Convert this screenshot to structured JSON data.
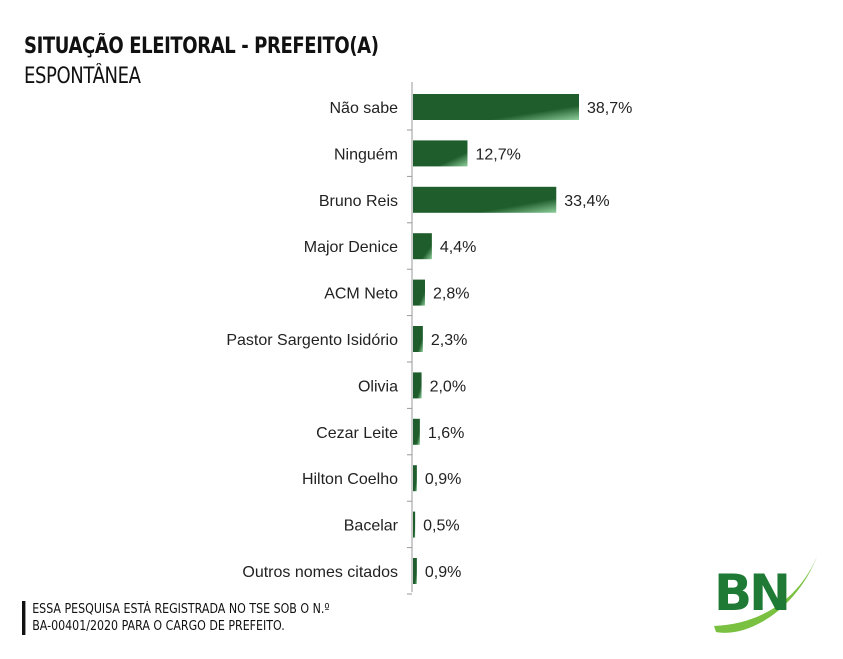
{
  "title": "SITUAÇÃO ELEITORAL - PREFEITO(A)",
  "subtitle": "ESPONTÂNEA",
  "footnote": {
    "line1": "ESSA PESQUISA ESTÁ REGISTRADA NO TSE SOB O N.º",
    "line2": "BA-00401/2020 PARA O CARGO DE PREFEITO."
  },
  "logo": {
    "text": "BN",
    "color": "#1e7a34",
    "swoosh_color": "#7ac142"
  },
  "colors": {
    "bar_dark": "#1f5e2c",
    "bar_light": "#8fcf9c",
    "axis": "#9a9a9a"
  },
  "chart_data": {
    "type": "bar",
    "orientation": "horizontal",
    "categories": [
      "Não sabe",
      "Ninguém",
      "Bruno Reis",
      "Major Denice",
      "ACM Neto",
      "Pastor Sargento Isidório",
      "Olivia",
      "Cezar Leite",
      "Hilton Coelho",
      "Bacelar",
      "Outros nomes citados"
    ],
    "values": [
      38.7,
      12.7,
      33.4,
      4.4,
      2.8,
      2.3,
      2.0,
      1.6,
      0.9,
      0.5,
      0.9
    ],
    "value_labels": [
      "38,7%",
      "12,7%",
      "33,4%",
      "4,4%",
      "2,8%",
      "2,3%",
      "2,0%",
      "1,6%",
      "0,9%",
      "0,5%",
      "0,9%"
    ],
    "xlim": [
      0,
      38.7
    ],
    "grid": false,
    "legend": "none"
  }
}
